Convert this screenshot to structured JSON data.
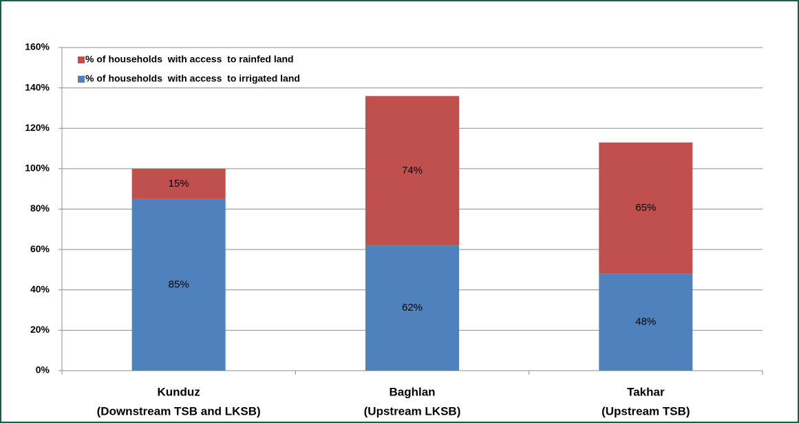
{
  "chart_data": {
    "type": "stacked_bar",
    "categories": [
      [
        "Kunduz",
        "(Downstream TSB and LKSB)"
      ],
      [
        "Baghlan",
        "(Upstream LKSB)"
      ],
      [
        "Takhar",
        "(Upstream TSB)"
      ]
    ],
    "series": [
      {
        "name": "% of households  with access  to irrigated land",
        "color": "#4f81bd",
        "values": [
          85,
          62,
          48
        ],
        "value_labels": [
          "85%",
          "62%",
          "48%"
        ]
      },
      {
        "name": "% of households  with access  to rainfed land",
        "color": "#c0504d",
        "values": [
          15,
          74,
          65
        ],
        "value_labels": [
          "15%",
          "74%",
          "65%"
        ]
      }
    ],
    "ylim": [
      0,
      160
    ],
    "yticks": [
      {
        "value": 0,
        "label": "0%"
      },
      {
        "value": 20,
        "label": "20%"
      },
      {
        "value": 40,
        "label": "40%"
      },
      {
        "value": 60,
        "label": "60%"
      },
      {
        "value": 80,
        "label": "80%"
      },
      {
        "value": 100,
        "label": "100%"
      },
      {
        "value": 120,
        "label": "120%"
      },
      {
        "value": 140,
        "label": "140%"
      },
      {
        "value": 160,
        "label": "160%"
      }
    ],
    "grid": true,
    "legend": "top-left"
  }
}
